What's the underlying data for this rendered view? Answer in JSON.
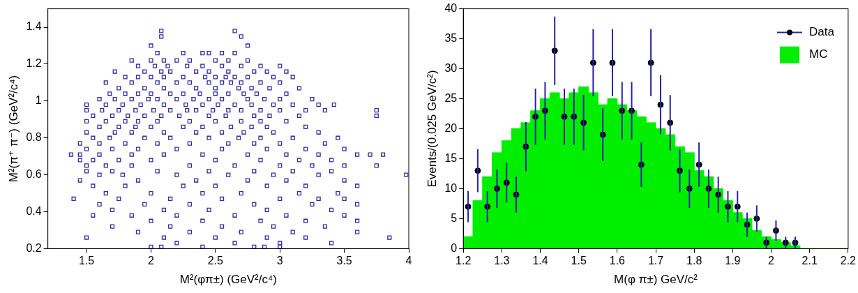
{
  "chart_data": [
    {
      "type": "scatter",
      "x_label": "M²(φπ±) (GeV²/c⁴)",
      "y_label": "M²(π⁺ π⁻) (GeV²/c⁴)",
      "xlim": [
        1.2,
        4
      ],
      "xticks": [
        1.5,
        2,
        2.5,
        3,
        3.5,
        4
      ],
      "ylim": [
        0.2,
        1.5
      ],
      "yticks": [
        0.2,
        0.4,
        0.6,
        0.8,
        1,
        1.2,
        1.4
      ],
      "grid": false,
      "color": "#2e2e9e",
      "marker": "square",
      "x": [
        2.08,
        2.65,
        2.08,
        2.7,
        2.0,
        2.75,
        2.05,
        2.25,
        2.4,
        2.45,
        2.55,
        2.65,
        1.85,
        2.0,
        2.1,
        2.2,
        2.3,
        2.5,
        2.6,
        2.75,
        1.9,
        2.03,
        2.13,
        2.28,
        2.4,
        2.55,
        2.7,
        2.85,
        3.0,
        1.72,
        1.95,
        2.08,
        2.15,
        2.35,
        2.45,
        2.6,
        2.8,
        2.9,
        3.05,
        1.8,
        1.9,
        2.0,
        2.1,
        2.25,
        2.42,
        2.5,
        2.58,
        2.65,
        2.75,
        2.95,
        3.1,
        1.65,
        1.85,
        2.05,
        2.2,
        2.3,
        2.45,
        2.55,
        2.62,
        2.7,
        2.85,
        3.0,
        1.75,
        1.95,
        2.1,
        2.35,
        2.5,
        2.68,
        2.78,
        2.92,
        3.15,
        1.68,
        1.8,
        1.9,
        2.0,
        2.15,
        2.25,
        2.38,
        2.5,
        2.6,
        2.72,
        2.82,
        3.05,
        1.6,
        1.72,
        1.85,
        1.98,
        2.05,
        2.2,
        2.33,
        2.45,
        2.55,
        2.75,
        2.88,
        3.0,
        3.25,
        1.5,
        1.65,
        1.78,
        1.92,
        2.1,
        2.27,
        2.4,
        2.52,
        2.65,
        2.78,
        2.95,
        3.1,
        3.3,
        3.42,
        1.5,
        1.62,
        1.75,
        1.88,
        2.02,
        2.15,
        2.28,
        2.35,
        2.48,
        2.6,
        2.7,
        2.85,
        3.0,
        3.2,
        3.35,
        3.75,
        1.55,
        1.7,
        1.82,
        1.95,
        2.08,
        2.22,
        2.45,
        2.58,
        2.8,
        2.92,
        3.15,
        3.75,
        1.5,
        1.65,
        1.8,
        1.9,
        2.05,
        2.3,
        2.5,
        2.7,
        2.85,
        3.05,
        1.6,
        1.75,
        1.88,
        2.0,
        2.25,
        2.4,
        2.62,
        2.78,
        2.9,
        3.2,
        1.5,
        1.72,
        1.85,
        2.1,
        2.35,
        2.55,
        2.72,
        2.95,
        3.3,
        1.55,
        1.68,
        1.95,
        2.15,
        2.45,
        2.68,
        2.85,
        3.1,
        3.45,
        1.45,
        1.6,
        1.8,
        2.05,
        2.3,
        2.6,
        2.8,
        3.0,
        3.35,
        1.5,
        1.7,
        1.9,
        2.2,
        2.55,
        2.9,
        3.2,
        3.5,
        1.38,
        1.45,
        1.6,
        1.85,
        2.1,
        2.4,
        2.75,
        3.05,
        3.3,
        3.6,
        3.7,
        3.8,
        1.45,
        1.55,
        1.75,
        2.0,
        2.5,
        2.85,
        3.15,
        3.4,
        1.5,
        1.65,
        1.85,
        2.3,
        2.65,
        3.0,
        3.25,
        3.5,
        3.75,
        1.5,
        1.7,
        2.05,
        2.45,
        2.8,
        3.1,
        3.4,
        1.6,
        1.78,
        2.2,
        2.6,
        2.95,
        3.3,
        3.98,
        1.45,
        1.9,
        2.35,
        2.75,
        3.05,
        3.5,
        1.55,
        1.8,
        2.25,
        2.5,
        2.9,
        3.2,
        3.6,
        1.65,
        2.0,
        2.4,
        2.7,
        3.15,
        3.45,
        1.4,
        1.75,
        2.15,
        2.55,
        3.0,
        3.3,
        3.5,
        1.6,
        1.95,
        2.3,
        2.8,
        3.25,
        3.6,
        1.7,
        2.1,
        2.45,
        2.9,
        3.4,
        1.55,
        1.85,
        2.2,
        2.65,
        3.05,
        3.5,
        2.0,
        2.4,
        2.85,
        3.2,
        3.6,
        1.7,
        2.15,
        2.55,
        2.95,
        3.35,
        1.9,
        2.3,
        2.7,
        3.1,
        3.6,
        1.5,
        2.1,
        2.5,
        2.9,
        3.2,
        3.85,
        2.2,
        2.65,
        3.0,
        3.4,
        2.0,
        2.08,
        2.4,
        2.8,
        2.88,
        3.0
      ],
      "values": [
        1.38,
        1.38,
        1.35,
        1.35,
        1.3,
        1.3,
        1.26,
        1.26,
        1.26,
        1.26,
        1.26,
        1.26,
        1.22,
        1.22,
        1.22,
        1.22,
        1.22,
        1.22,
        1.22,
        1.22,
        1.19,
        1.19,
        1.19,
        1.19,
        1.19,
        1.19,
        1.19,
        1.19,
        1.19,
        1.16,
        1.16,
        1.16,
        1.16,
        1.16,
        1.16,
        1.16,
        1.16,
        1.16,
        1.16,
        1.13,
        1.13,
        1.13,
        1.13,
        1.13,
        1.13,
        1.13,
        1.13,
        1.13,
        1.13,
        1.13,
        1.13,
        1.1,
        1.1,
        1.1,
        1.1,
        1.1,
        1.1,
        1.1,
        1.1,
        1.1,
        1.1,
        1.1,
        1.07,
        1.07,
        1.07,
        1.07,
        1.07,
        1.07,
        1.07,
        1.07,
        1.07,
        1.04,
        1.04,
        1.04,
        1.04,
        1.04,
        1.04,
        1.04,
        1.04,
        1.04,
        1.04,
        1.04,
        1.04,
        1.01,
        1.01,
        1.01,
        1.01,
        1.01,
        1.01,
        1.01,
        1.01,
        1.01,
        1.01,
        1.01,
        1.01,
        1.01,
        0.98,
        0.98,
        0.98,
        0.98,
        0.98,
        0.98,
        0.98,
        0.98,
        0.98,
        0.98,
        0.98,
        0.98,
        0.98,
        0.98,
        0.95,
        0.95,
        0.95,
        0.95,
        0.95,
        0.95,
        0.95,
        0.95,
        0.95,
        0.95,
        0.95,
        0.95,
        0.95,
        0.95,
        0.95,
        0.95,
        0.92,
        0.92,
        0.92,
        0.92,
        0.92,
        0.92,
        0.92,
        0.92,
        0.92,
        0.92,
        0.92,
        0.92,
        0.89,
        0.89,
        0.89,
        0.89,
        0.89,
        0.89,
        0.89,
        0.89,
        0.89,
        0.89,
        0.86,
        0.86,
        0.86,
        0.86,
        0.86,
        0.86,
        0.86,
        0.86,
        0.86,
        0.86,
        0.83,
        0.83,
        0.83,
        0.83,
        0.83,
        0.83,
        0.83,
        0.83,
        0.83,
        0.8,
        0.8,
        0.8,
        0.8,
        0.8,
        0.8,
        0.8,
        0.8,
        0.8,
        0.77,
        0.77,
        0.77,
        0.77,
        0.77,
        0.77,
        0.77,
        0.77,
        0.77,
        0.74,
        0.74,
        0.74,
        0.74,
        0.74,
        0.74,
        0.74,
        0.74,
        0.71,
        0.71,
        0.71,
        0.71,
        0.71,
        0.71,
        0.71,
        0.71,
        0.71,
        0.71,
        0.71,
        0.71,
        0.68,
        0.68,
        0.68,
        0.68,
        0.68,
        0.68,
        0.68,
        0.68,
        0.65,
        0.65,
        0.65,
        0.65,
        0.65,
        0.65,
        0.65,
        0.65,
        0.65,
        0.62,
        0.62,
        0.62,
        0.62,
        0.62,
        0.62,
        0.62,
        0.6,
        0.6,
        0.6,
        0.6,
        0.6,
        0.6,
        0.6,
        0.57,
        0.57,
        0.57,
        0.57,
        0.57,
        0.57,
        0.54,
        0.54,
        0.54,
        0.54,
        0.54,
        0.54,
        0.54,
        0.5,
        0.5,
        0.5,
        0.5,
        0.5,
        0.5,
        0.47,
        0.47,
        0.47,
        0.47,
        0.47,
        0.47,
        0.47,
        0.44,
        0.44,
        0.44,
        0.44,
        0.44,
        0.44,
        0.41,
        0.41,
        0.41,
        0.41,
        0.41,
        0.38,
        0.38,
        0.38,
        0.38,
        0.38,
        0.38,
        0.35,
        0.35,
        0.35,
        0.35,
        0.35,
        0.32,
        0.32,
        0.32,
        0.32,
        0.32,
        0.29,
        0.29,
        0.29,
        0.29,
        0.29,
        0.26,
        0.26,
        0.26,
        0.26,
        0.26,
        0.26,
        0.23,
        0.23,
        0.23,
        0.23,
        0.21,
        0.21,
        0.21,
        0.21,
        0.21,
        0.21
      ]
    },
    {
      "type": "histogram",
      "x_label": "M(φ π±) GeV/c²",
      "y_label": "Events/(0.025 GeV/c²)",
      "xlim": [
        1.2,
        2.2
      ],
      "xticks": [
        1.2,
        1.3,
        1.4,
        1.5,
        1.6,
        1.7,
        1.8,
        1.9,
        2,
        2.1,
        2.2
      ],
      "ylim": [
        0,
        40
      ],
      "yticks": [
        0,
        5,
        10,
        15,
        20,
        25,
        30,
        35,
        40
      ],
      "grid": false,
      "legend": "upper right",
      "series": [
        {
          "name": "Data",
          "type": "scatter",
          "color": "#000000",
          "marker": "circle",
          "x": [
            1.2125,
            1.2375,
            1.2625,
            1.2875,
            1.3125,
            1.3375,
            1.3625,
            1.3875,
            1.4125,
            1.4375,
            1.4625,
            1.4875,
            1.5125,
            1.5375,
            1.5625,
            1.5875,
            1.6125,
            1.6375,
            1.6625,
            1.6875,
            1.7125,
            1.7375,
            1.7625,
            1.7875,
            1.8125,
            1.8375,
            1.8625,
            1.8875,
            1.9125,
            1.9375,
            1.9625,
            1.9875,
            2.0125,
            2.0375,
            2.0625
          ],
          "values": [
            7,
            13,
            7,
            10,
            11,
            9,
            17,
            22,
            23,
            33,
            22,
            22,
            21,
            31,
            19,
            31,
            23,
            23,
            14,
            31,
            24,
            21,
            13,
            10,
            14,
            10,
            9,
            7,
            7,
            4,
            5,
            1,
            3,
            1,
            1
          ],
          "errors": [
            2.6,
            3.6,
            2.6,
            3.2,
            3.3,
            3,
            4.1,
            4.7,
            4.8,
            5.7,
            4.7,
            4.7,
            4.6,
            5.6,
            4.4,
            5.6,
            4.8,
            4.8,
            3.7,
            5.6,
            4.9,
            4.6,
            3.6,
            3.2,
            3.7,
            3.2,
            3,
            2.6,
            2.6,
            2,
            2.2,
            1,
            1.7,
            1,
            1
          ]
        },
        {
          "name": "MC",
          "type": "histogram",
          "color": "#00ee00",
          "bins": [
            1.2,
            1.225,
            1.25,
            1.275,
            1.3,
            1.325,
            1.35,
            1.375,
            1.4,
            1.425,
            1.45,
            1.475,
            1.5,
            1.525,
            1.55,
            1.575,
            1.6,
            1.625,
            1.65,
            1.675,
            1.7,
            1.725,
            1.75,
            1.775,
            1.8,
            1.825,
            1.85,
            1.875,
            1.9,
            1.925,
            1.95,
            1.975,
            2.0,
            2.025,
            2.05,
            2.075,
            2.1,
            2.125,
            2.15,
            2.175,
            2.2
          ],
          "values": [
            2,
            8,
            12,
            16,
            18,
            20,
            21,
            23,
            25,
            26,
            25,
            26,
            27,
            26,
            24,
            25,
            24,
            23,
            22,
            21,
            20,
            19,
            17,
            16,
            13,
            12,
            10,
            8,
            6,
            5,
            3,
            2,
            1.5,
            1,
            0.5,
            0,
            0,
            0,
            0,
            0
          ]
        }
      ]
    }
  ]
}
